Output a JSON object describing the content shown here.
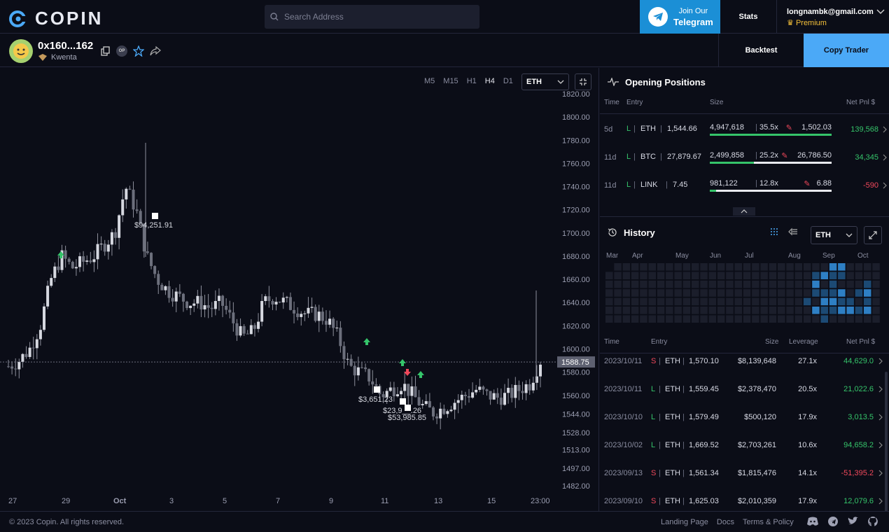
{
  "header": {
    "logo_text": "COPIN",
    "search_placeholder": "Search Address",
    "telegram_line1": "Join Our",
    "telegram_line2": "Telegram",
    "stats_label": "Stats",
    "user_email": "longnambk@gmail.com",
    "user_tier": "Premium"
  },
  "trader": {
    "address": "0x160...162",
    "protocol": "Kwenta",
    "badge": "OP",
    "backtest_label": "Backtest",
    "copy_label": "Copy Trader"
  },
  "chart": {
    "timeframes": [
      "M5",
      "M15",
      "H1",
      "H4",
      "D1"
    ],
    "active_timeframe": "H4",
    "token": "ETH",
    "price_ticks": [
      "1820.00",
      "1800.00",
      "1780.00",
      "1760.00",
      "1740.00",
      "1720.00",
      "1700.00",
      "1680.00",
      "1660.00",
      "1640.00",
      "1620.00",
      "1600.00",
      "1580.00",
      "1560.00",
      "1544.00",
      "1528.00",
      "1513.00",
      "1497.00",
      "1482.00"
    ],
    "current_price": "1588.75",
    "date_ticks": [
      "27",
      "29",
      "Oct",
      "3",
      "5",
      "7",
      "9",
      "11",
      "13",
      "15",
      "23:00"
    ],
    "markers": [
      "$94,251.91",
      "$3,651.23",
      "$23,9__.26",
      "$53,985.85"
    ]
  },
  "chart_data": {
    "type": "candlestick",
    "token": "ETH",
    "timeframe": "H4",
    "ylim": [
      1482,
      1820
    ],
    "last_price": 1588.75,
    "close_path": [
      1585,
      1590,
      1600,
      1620,
      1660,
      1680,
      1670,
      1675,
      1680,
      1690,
      1700,
      1740,
      1720,
      1680,
      1660,
      1650,
      1645,
      1640,
      1640,
      1635,
      1640,
      1625,
      1610,
      1615,
      1640,
      1645,
      1640,
      1635,
      1630,
      1630,
      1625,
      1610,
      1585,
      1580,
      1575,
      1560,
      1565,
      1570,
      1560,
      1550,
      1545,
      1550,
      1555,
      1560,
      1565,
      1560,
      1558,
      1560,
      1565,
      1570,
      1590
    ]
  },
  "positions": {
    "title": "Opening Positions",
    "cols": {
      "time": "Time",
      "entry": "Entry",
      "size": "Size",
      "pnl": "Net Pnl $"
    },
    "rows": [
      {
        "time": "5d",
        "side": "L",
        "token": "ETH",
        "entry": "1,544.66",
        "size": "4,947,618",
        "lev": "35.5x",
        "liq": "1,502.03",
        "pnl": "139,568",
        "pnl_class": "green",
        "fill": 1.0
      },
      {
        "time": "11d",
        "side": "L",
        "token": "BTC",
        "entry": "27,879.67",
        "size": "2,499,858",
        "lev": "25.2x",
        "liq": "26,786.50",
        "pnl": "34,345",
        "pnl_class": "green",
        "fill": 0.36
      },
      {
        "time": "11d",
        "side": "L",
        "token": "LINK",
        "entry": "7.45",
        "size": "981,122",
        "lev": "12.8x",
        "liq": "6.88",
        "pnl": "-590",
        "pnl_class": "red",
        "fill": 0.05
      }
    ]
  },
  "history": {
    "title": "History",
    "token": "ETH",
    "months": [
      "Mar",
      "Apr",
      "May",
      "Jun",
      "Jul",
      "Aug",
      "Sep",
      "Oct"
    ],
    "cols": {
      "time": "Time",
      "entry": "Entry",
      "size": "Size",
      "lev": "Leverage",
      "pnl": "Net Pnl $"
    },
    "rows": [
      {
        "date": "2023/10/11",
        "side": "S",
        "token": "ETH",
        "entry": "1,570.10",
        "size": "$8,139,648",
        "lev": "27.1x",
        "pnl": "44,629.0",
        "pnl_class": "green"
      },
      {
        "date": "2023/10/11",
        "side": "L",
        "token": "ETH",
        "entry": "1,559.45",
        "size": "$2,378,470",
        "lev": "20.5x",
        "pnl": "21,022.6",
        "pnl_class": "green"
      },
      {
        "date": "2023/10/10",
        "side": "L",
        "token": "ETH",
        "entry": "1,579.49",
        "size": "$500,120",
        "lev": "17.9x",
        "pnl": "3,013.5",
        "pnl_class": "green"
      },
      {
        "date": "2023/10/02",
        "side": "L",
        "token": "ETH",
        "entry": "1,669.52",
        "size": "$2,703,261",
        "lev": "10.6x",
        "pnl": "94,658.2",
        "pnl_class": "green"
      },
      {
        "date": "2023/09/13",
        "side": "S",
        "token": "ETH",
        "entry": "1,561.34",
        "size": "$1,815,476",
        "lev": "14.1x",
        "pnl": "-51,395.2",
        "pnl_class": "red"
      },
      {
        "date": "2023/09/10",
        "side": "S",
        "token": "ETH",
        "entry": "1,625.03",
        "size": "$2,010,359",
        "lev": "17.9x",
        "pnl": "12,079.6",
        "pnl_class": "green"
      }
    ]
  },
  "footer": {
    "copyright": "© 2023 Copin. All rights reserved.",
    "links": [
      "Landing Page",
      "Docs",
      "Terms & Policy"
    ]
  },
  "colors": {
    "accent": "#4ba9f7",
    "telegram": "#1b8fd6",
    "green": "#35c46a",
    "red": "#f0485b",
    "premium": "#f5c13a"
  }
}
